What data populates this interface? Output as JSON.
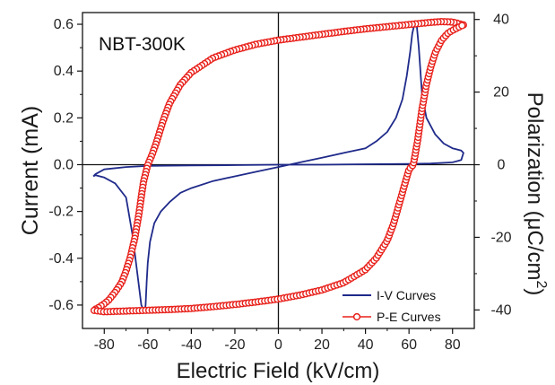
{
  "chart_data": {
    "type": "line",
    "annotation": "NBT-300K",
    "xlabel": "Electric Field (kV/cm)",
    "ylabel_left": "Current (mA)",
    "ylabel_right_main": "Polarization (μC/cm",
    "ylabel_right_sup": "2",
    "ylabel_right_close": ")",
    "xlim": [
      -90,
      90
    ],
    "ylim_left": [
      -0.7,
      0.65
    ],
    "ylim_right": [
      -45.1,
      41.9
    ],
    "x_ticks": [
      -80,
      -60,
      -40,
      -20,
      0,
      20,
      40,
      60,
      80
    ],
    "y_left_ticks": [
      -0.6,
      -0.4,
      -0.2,
      0.0,
      0.2,
      0.4,
      0.6
    ],
    "y_right_ticks": [
      -40,
      -20,
      0,
      20,
      40
    ],
    "grid": false,
    "legend_position": "bottom-right",
    "series": [
      {
        "name": "I-V Curves",
        "axis": "left",
        "color": "#1f2a8a",
        "marker": "none",
        "x": [
          -85,
          -84,
          -80,
          -75,
          -70,
          -67,
          -65,
          -63,
          -61.5,
          -61,
          -60.5,
          -60,
          -59,
          -57,
          -54,
          -50,
          -45,
          -40,
          -30,
          -20,
          -10,
          0,
          10,
          20,
          30,
          40,
          45,
          50,
          54,
          57,
          59,
          60.5,
          61.5,
          62.5,
          63.5,
          64.5,
          66,
          68,
          72,
          76,
          80,
          84,
          85,
          84,
          80,
          70,
          60,
          40,
          20,
          0,
          -20,
          -40,
          -60,
          -70,
          -80,
          -84,
          -85
        ],
        "y": [
          -0.05,
          -0.045,
          -0.055,
          -0.08,
          -0.14,
          -0.3,
          -0.45,
          -0.6,
          -0.63,
          -0.6,
          -0.5,
          -0.42,
          -0.33,
          -0.25,
          -0.2,
          -0.16,
          -0.12,
          -0.1,
          -0.07,
          -0.05,
          -0.03,
          -0.01,
          0.01,
          0.03,
          0.05,
          0.07,
          0.1,
          0.14,
          0.2,
          0.28,
          0.38,
          0.48,
          0.56,
          0.6,
          0.6,
          0.5,
          0.3,
          0.2,
          0.13,
          0.09,
          0.07,
          0.06,
          0.05,
          0.02,
          0.01,
          0.005,
          0.003,
          0.002,
          0.0,
          0.0,
          -0.002,
          -0.003,
          -0.005,
          -0.01,
          -0.02,
          -0.04,
          -0.05
        ]
      },
      {
        "name": "P-E Curves",
        "axis": "right",
        "color": "#e8201a",
        "marker": "open-circle",
        "x": [
          85,
          80,
          75,
          70,
          65,
          60,
          55,
          50,
          40,
          30,
          20,
          10,
          0,
          -10,
          -20,
          -30,
          -40,
          -45,
          -50,
          -53,
          -56,
          -58,
          -60,
          -62,
          -64,
          -66,
          -68,
          -70,
          -72,
          -75,
          -78,
          -80,
          -83,
          -85,
          -80,
          -75,
          -70,
          -60,
          -50,
          -40,
          -30,
          -20,
          -10,
          0,
          10,
          20,
          30,
          40,
          45,
          50,
          53,
          56,
          58,
          60,
          62,
          64,
          66,
          68,
          70,
          72,
          75,
          78,
          80,
          83,
          85
        ],
        "y": [
          38.5,
          39.3,
          39.4,
          39.2,
          38.9,
          38.6,
          38.3,
          38.0,
          37.4,
          36.7,
          35.9,
          35.1,
          34.3,
          33.2,
          31.6,
          29.4,
          25.4,
          22.1,
          16.9,
          12.0,
          6.2,
          2.8,
          0.0,
          -4.8,
          -13.2,
          -20.3,
          -25.4,
          -29.3,
          -32.4,
          -35.1,
          -37.3,
          -38.3,
          -39.5,
          -40.1,
          -40.5,
          -40.4,
          -40.3,
          -40.1,
          -39.9,
          -39.6,
          -39.1,
          -38.5,
          -37.8,
          -37.0,
          -35.9,
          -34.5,
          -32.5,
          -28.9,
          -25.7,
          -20.9,
          -16.1,
          -9.7,
          -5.5,
          -1.3,
          0.0,
          6.8,
          15.4,
          22.1,
          26.9,
          30.8,
          34.3,
          36.3,
          37.0,
          37.9,
          38.5
        ]
      }
    ]
  }
}
